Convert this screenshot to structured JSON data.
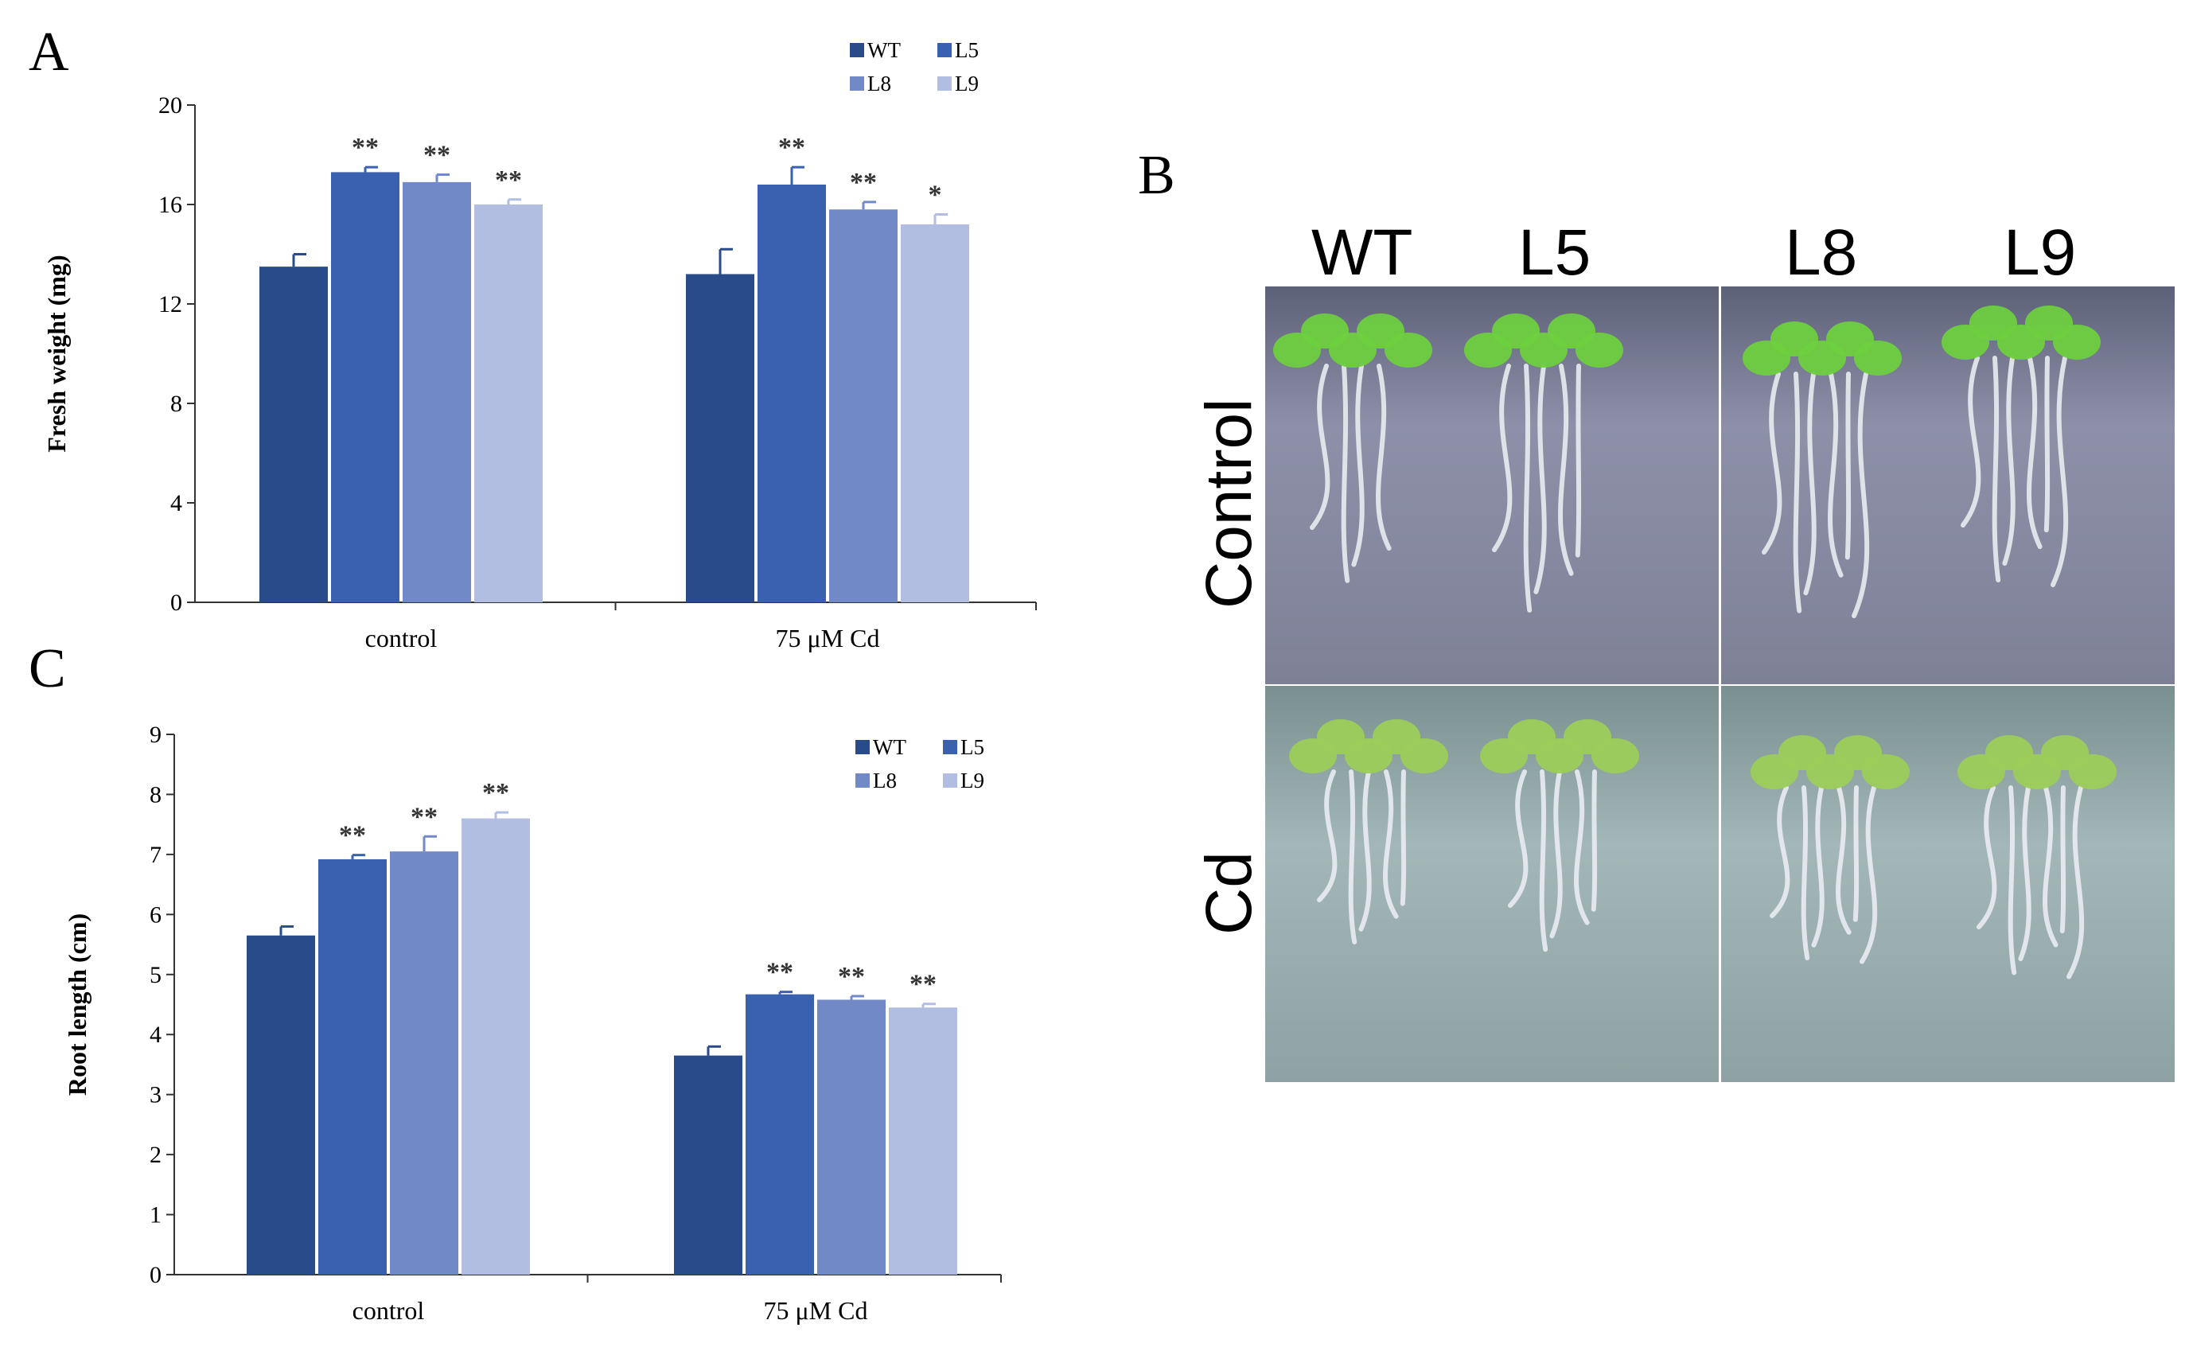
{
  "panels": {
    "A": "A",
    "B": "B",
    "C": "C"
  },
  "chart_data": [
    {
      "type": "bar",
      "panel": "A",
      "ylabel": "Fresh weight (mg)",
      "xlabel": "",
      "ylim": [
        0,
        20
      ],
      "yticks": [
        "0",
        "4",
        "8",
        "12",
        "16",
        "20"
      ],
      "categories": [
        "control",
        "75 μM Cd"
      ],
      "series": [
        {
          "name": "WT",
          "color": "#2a4b8a",
          "values": [
            13.5,
            13.2
          ],
          "errors": [
            0.5,
            1.0
          ],
          "sig": [
            "",
            ""
          ]
        },
        {
          "name": "L5",
          "color": "#3a60b0",
          "values": [
            17.3,
            16.8
          ],
          "errors": [
            0.2,
            0.7
          ],
          "sig": [
            "**",
            "**"
          ]
        },
        {
          "name": "L8",
          "color": "#7189c7",
          "values": [
            16.9,
            15.8
          ],
          "errors": [
            0.3,
            0.3
          ],
          "sig": [
            "**",
            "**"
          ]
        },
        {
          "name": "L9",
          "color": "#b1bde1",
          "values": [
            16.0,
            15.2
          ],
          "errors": [
            0.2,
            0.4
          ],
          "sig": [
            "**",
            "*"
          ]
        }
      ],
      "legend": "top-right",
      "grid": false
    },
    {
      "type": "bar",
      "panel": "C",
      "ylabel": "Root length (cm)",
      "xlabel": "",
      "ylim": [
        0,
        9
      ],
      "yticks": [
        "0",
        "1",
        "2",
        "3",
        "4",
        "5",
        "6",
        "7",
        "8",
        "9"
      ],
      "categories": [
        "control",
        "75 μM Cd"
      ],
      "series": [
        {
          "name": "WT",
          "color": "#2a4b8a",
          "values": [
            5.65,
            3.65
          ],
          "errors": [
            0.15,
            0.15
          ],
          "sig": [
            "",
            ""
          ]
        },
        {
          "name": "L5",
          "color": "#3a60b0",
          "values": [
            6.92,
            4.67
          ],
          "errors": [
            0.07,
            0.04
          ],
          "sig": [
            "**",
            "**"
          ]
        },
        {
          "name": "L8",
          "color": "#7189c7",
          "values": [
            7.05,
            4.58
          ],
          "errors": [
            0.25,
            0.06
          ],
          "sig": [
            "**",
            "**"
          ]
        },
        {
          "name": "L9",
          "color": "#b1bde1",
          "values": [
            7.6,
            4.45
          ],
          "errors": [
            0.1,
            0.06
          ],
          "sig": [
            "**",
            "**"
          ]
        }
      ],
      "legend": "top-right",
      "grid": false
    }
  ],
  "photo": {
    "column_labels": [
      "WT",
      "L5",
      "L8",
      "L9"
    ],
    "row_labels": [
      "Control",
      "Cd"
    ],
    "colors": {
      "plate_control": "#8c8fa6",
      "plate_cd": "#8fa3a6",
      "leaf": "#6ecf3f",
      "leaf_cd": "#9ccc5a",
      "root": "#e8ecf0"
    }
  }
}
